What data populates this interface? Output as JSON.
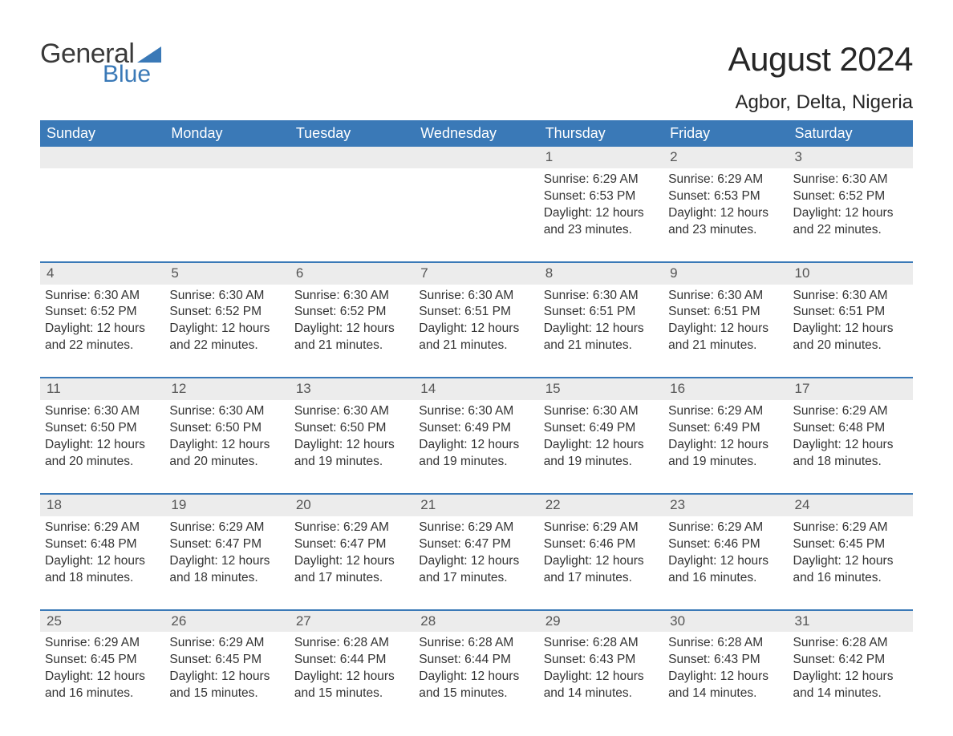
{
  "brand": {
    "general": "General",
    "blue": "Blue",
    "triangle_color": "#3a79b7"
  },
  "title": "August 2024",
  "location": "Agbor, Delta, Nigeria",
  "colors": {
    "header_bg": "#3a79b7",
    "header_text": "#ffffff",
    "daybar_bg": "#ececec",
    "daybar_border": "#3a79b7",
    "body_text": "#333333",
    "page_bg": "#ffffff"
  },
  "weekdays": [
    "Sunday",
    "Monday",
    "Tuesday",
    "Wednesday",
    "Thursday",
    "Friday",
    "Saturday"
  ],
  "weeks": [
    [
      null,
      null,
      null,
      null,
      {
        "n": "1",
        "sunrise": "6:29 AM",
        "sunset": "6:53 PM",
        "daylight": "12 hours and 23 minutes."
      },
      {
        "n": "2",
        "sunrise": "6:29 AM",
        "sunset": "6:53 PM",
        "daylight": "12 hours and 23 minutes."
      },
      {
        "n": "3",
        "sunrise": "6:30 AM",
        "sunset": "6:52 PM",
        "daylight": "12 hours and 22 minutes."
      }
    ],
    [
      {
        "n": "4",
        "sunrise": "6:30 AM",
        "sunset": "6:52 PM",
        "daylight": "12 hours and 22 minutes."
      },
      {
        "n": "5",
        "sunrise": "6:30 AM",
        "sunset": "6:52 PM",
        "daylight": "12 hours and 22 minutes."
      },
      {
        "n": "6",
        "sunrise": "6:30 AM",
        "sunset": "6:52 PM",
        "daylight": "12 hours and 21 minutes."
      },
      {
        "n": "7",
        "sunrise": "6:30 AM",
        "sunset": "6:51 PM",
        "daylight": "12 hours and 21 minutes."
      },
      {
        "n": "8",
        "sunrise": "6:30 AM",
        "sunset": "6:51 PM",
        "daylight": "12 hours and 21 minutes."
      },
      {
        "n": "9",
        "sunrise": "6:30 AM",
        "sunset": "6:51 PM",
        "daylight": "12 hours and 21 minutes."
      },
      {
        "n": "10",
        "sunrise": "6:30 AM",
        "sunset": "6:51 PM",
        "daylight": "12 hours and 20 minutes."
      }
    ],
    [
      {
        "n": "11",
        "sunrise": "6:30 AM",
        "sunset": "6:50 PM",
        "daylight": "12 hours and 20 minutes."
      },
      {
        "n": "12",
        "sunrise": "6:30 AM",
        "sunset": "6:50 PM",
        "daylight": "12 hours and 20 minutes."
      },
      {
        "n": "13",
        "sunrise": "6:30 AM",
        "sunset": "6:50 PM",
        "daylight": "12 hours and 19 minutes."
      },
      {
        "n": "14",
        "sunrise": "6:30 AM",
        "sunset": "6:49 PM",
        "daylight": "12 hours and 19 minutes."
      },
      {
        "n": "15",
        "sunrise": "6:30 AM",
        "sunset": "6:49 PM",
        "daylight": "12 hours and 19 minutes."
      },
      {
        "n": "16",
        "sunrise": "6:29 AM",
        "sunset": "6:49 PM",
        "daylight": "12 hours and 19 minutes."
      },
      {
        "n": "17",
        "sunrise": "6:29 AM",
        "sunset": "6:48 PM",
        "daylight": "12 hours and 18 minutes."
      }
    ],
    [
      {
        "n": "18",
        "sunrise": "6:29 AM",
        "sunset": "6:48 PM",
        "daylight": "12 hours and 18 minutes."
      },
      {
        "n": "19",
        "sunrise": "6:29 AM",
        "sunset": "6:47 PM",
        "daylight": "12 hours and 18 minutes."
      },
      {
        "n": "20",
        "sunrise": "6:29 AM",
        "sunset": "6:47 PM",
        "daylight": "12 hours and 17 minutes."
      },
      {
        "n": "21",
        "sunrise": "6:29 AM",
        "sunset": "6:47 PM",
        "daylight": "12 hours and 17 minutes."
      },
      {
        "n": "22",
        "sunrise": "6:29 AM",
        "sunset": "6:46 PM",
        "daylight": "12 hours and 17 minutes."
      },
      {
        "n": "23",
        "sunrise": "6:29 AM",
        "sunset": "6:46 PM",
        "daylight": "12 hours and 16 minutes."
      },
      {
        "n": "24",
        "sunrise": "6:29 AM",
        "sunset": "6:45 PM",
        "daylight": "12 hours and 16 minutes."
      }
    ],
    [
      {
        "n": "25",
        "sunrise": "6:29 AM",
        "sunset": "6:45 PM",
        "daylight": "12 hours and 16 minutes."
      },
      {
        "n": "26",
        "sunrise": "6:29 AM",
        "sunset": "6:45 PM",
        "daylight": "12 hours and 15 minutes."
      },
      {
        "n": "27",
        "sunrise": "6:28 AM",
        "sunset": "6:44 PM",
        "daylight": "12 hours and 15 minutes."
      },
      {
        "n": "28",
        "sunrise": "6:28 AM",
        "sunset": "6:44 PM",
        "daylight": "12 hours and 15 minutes."
      },
      {
        "n": "29",
        "sunrise": "6:28 AM",
        "sunset": "6:43 PM",
        "daylight": "12 hours and 14 minutes."
      },
      {
        "n": "30",
        "sunrise": "6:28 AM",
        "sunset": "6:43 PM",
        "daylight": "12 hours and 14 minutes."
      },
      {
        "n": "31",
        "sunrise": "6:28 AM",
        "sunset": "6:42 PM",
        "daylight": "12 hours and 14 minutes."
      }
    ]
  ],
  "labels": {
    "sunrise": "Sunrise: ",
    "sunset": "Sunset: ",
    "daylight": "Daylight: "
  }
}
